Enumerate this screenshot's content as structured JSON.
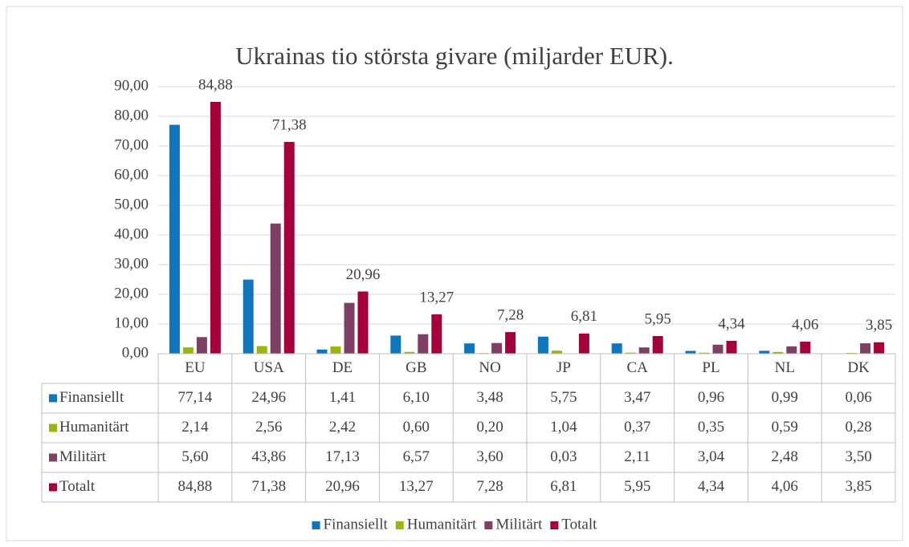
{
  "chart_data": {
    "type": "bar",
    "title": "Ukrainas tio största givare (miljarder EUR).",
    "categories": [
      "EU",
      "USA",
      "DE",
      "GB",
      "NO",
      "JP",
      "CA",
      "PL",
      "NL",
      "DK"
    ],
    "series": [
      {
        "name": "Finansiellt",
        "color": "#0f75bc",
        "values": [
          77.14,
          24.96,
          1.41,
          6.1,
          3.48,
          5.75,
          3.47,
          0.96,
          0.99,
          0.06
        ],
        "value_labels": [
          "77,14",
          "24,96",
          "1,41",
          "6,10",
          "3,48",
          "5,75",
          "3,47",
          "0,96",
          "0,99",
          "0,06"
        ]
      },
      {
        "name": "Humanitärt",
        "color": "#9cb40f",
        "values": [
          2.14,
          2.56,
          2.42,
          0.6,
          0.2,
          1.04,
          0.37,
          0.35,
          0.59,
          0.28
        ],
        "value_labels": [
          "2,14",
          "2,56",
          "2,42",
          "0,60",
          "0,20",
          "1,04",
          "0,37",
          "0,35",
          "0,59",
          "0,28"
        ]
      },
      {
        "name": "Militärt",
        "color": "#7d3f64",
        "values": [
          5.6,
          43.86,
          17.13,
          6.57,
          3.6,
          0.03,
          2.11,
          3.04,
          2.48,
          3.5
        ],
        "value_labels": [
          "5,60",
          "43,86",
          "17,13",
          "6,57",
          "3,60",
          "0,03",
          "2,11",
          "3,04",
          "2,48",
          "3,50"
        ]
      },
      {
        "name": "Totalt",
        "color": "#a5003a",
        "values": [
          84.88,
          71.38,
          20.96,
          13.27,
          7.28,
          6.81,
          5.95,
          4.34,
          4.06,
          3.85
        ],
        "value_labels": [
          "84,88",
          "71,38",
          "20,96",
          "13,27",
          "7,28",
          "6,81",
          "5,95",
          "4,34",
          "4,06",
          "3,85"
        ],
        "data_labels": true
      }
    ],
    "ylim": [
      0,
      90
    ],
    "yticks": [
      {
        "value": 0,
        "label": "0,00"
      },
      {
        "value": 10,
        "label": "10,00"
      },
      {
        "value": 20,
        "label": "20,00"
      },
      {
        "value": 30,
        "label": "30,00"
      },
      {
        "value": 40,
        "label": "40,00"
      },
      {
        "value": 50,
        "label": "50,00"
      },
      {
        "value": 60,
        "label": "60,00"
      },
      {
        "value": 70,
        "label": "70,00"
      },
      {
        "value": 80,
        "label": "80,00"
      },
      {
        "value": 90,
        "label": "90,00"
      }
    ],
    "grid": true,
    "legend": "bottom",
    "data_table": true
  }
}
